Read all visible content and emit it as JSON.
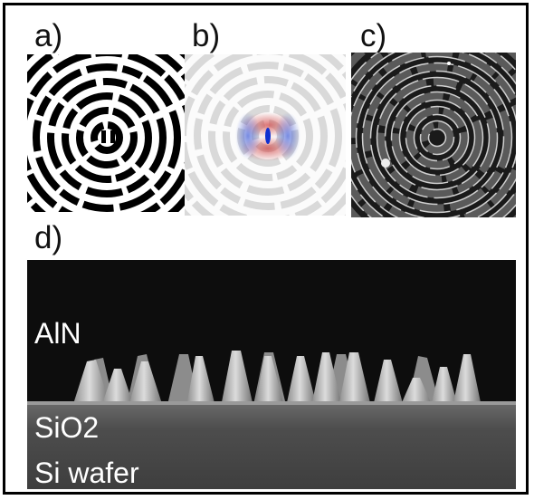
{
  "figure": {
    "panels": [
      {
        "id": "a",
        "label": "a)"
      },
      {
        "id": "b",
        "label": "b)"
      },
      {
        "id": "c",
        "label": "c)"
      },
      {
        "id": "d",
        "label": "d)"
      }
    ],
    "sem_labels": {
      "layer_top": "AlN",
      "layer_mid": "SiO2",
      "layer_bottom": "Si wafer"
    },
    "colors": {
      "pattern_dark": "#000000",
      "pattern_light_b": "#d9d9d9",
      "field_red": "#d04040",
      "field_blue": "#2040d0",
      "sem_background": "#0d0d0d",
      "sem_substrate": "#4a4a4a"
    }
  }
}
